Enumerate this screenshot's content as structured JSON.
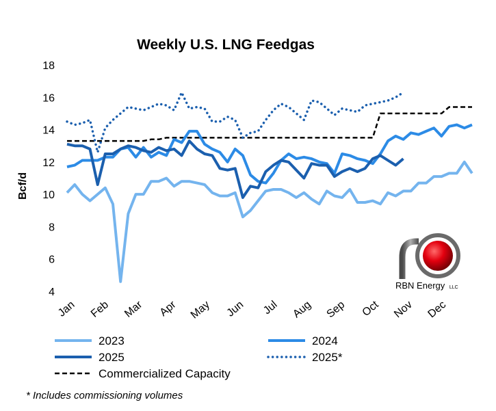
{
  "chart_data": {
    "type": "line",
    "title": "Weekly U.S. LNG Feedgas",
    "ylabel": "Bcf/d",
    "xlabel": "",
    "ylim": [
      4,
      18
    ],
    "yticks": [
      4,
      6,
      8,
      10,
      12,
      14,
      16,
      18
    ],
    "months": [
      "Jan",
      "Feb",
      "Mar",
      "Apr",
      "May",
      "Jun",
      "Jul",
      "Aug",
      "Sep",
      "Oct",
      "Nov",
      "Dec"
    ],
    "x_unit": "week",
    "grid": false,
    "legend": "bottom",
    "series": [
      {
        "name": "2023",
        "color": "#74b4ee",
        "style": "solid",
        "values": [
          10.1,
          10.6,
          10.0,
          9.6,
          10.0,
          10.4,
          9.4,
          4.6,
          8.8,
          10.0,
          10.0,
          10.8,
          10.8,
          11.0,
          10.5,
          10.8,
          10.8,
          10.7,
          10.6,
          10.1,
          9.9,
          9.9,
          10.1,
          8.6,
          9.0,
          9.6,
          10.2,
          10.3,
          10.3,
          10.1,
          9.8,
          10.1,
          9.7,
          9.4,
          10.2,
          9.9,
          9.8,
          10.3,
          9.5,
          9.5,
          9.6,
          9.4,
          10.1,
          9.9,
          10.2,
          10.2,
          10.7,
          10.7,
          11.1,
          11.1,
          11.3,
          11.3,
          12.0,
          11.3
        ]
      },
      {
        "name": "2024",
        "color": "#2c8be6",
        "style": "solid",
        "values": [
          11.7,
          11.8,
          12.1,
          12.1,
          12.1,
          12.3,
          12.3,
          12.8,
          12.9,
          12.3,
          12.9,
          12.3,
          12.6,
          12.4,
          13.4,
          13.2,
          13.9,
          13.9,
          13.1,
          12.8,
          12.6,
          12.0,
          12.8,
          12.4,
          11.2,
          10.8,
          10.7,
          11.3,
          12.1,
          12.5,
          12.2,
          12.3,
          12.2,
          12.0,
          11.9,
          11.3,
          12.5,
          12.4,
          12.2,
          12.1,
          11.9,
          12.5,
          13.3,
          13.6,
          13.4,
          13.8,
          13.7,
          13.9,
          14.1,
          13.6,
          14.2,
          14.3,
          14.1,
          14.3
        ]
      },
      {
        "name": "2025",
        "color": "#1b5fae",
        "style": "solid",
        "values": [
          13.1,
          13.0,
          13.0,
          12.8,
          10.6,
          12.5,
          12.5,
          12.8,
          13.0,
          12.9,
          12.7,
          12.6,
          12.9,
          12.7,
          12.8,
          12.4,
          13.3,
          12.8,
          12.5,
          12.4,
          11.6,
          11.5,
          11.6,
          9.8,
          10.5,
          10.4,
          11.4,
          11.8,
          12.1,
          12.0,
          11.5,
          11.0,
          11.9,
          11.8,
          11.8,
          11.1,
          11.4,
          11.6,
          11.4,
          11.6,
          12.2,
          12.4,
          12.1,
          11.8,
          12.2
        ]
      },
      {
        "name": "2025*",
        "color": "#1b5fae",
        "style": "dotted",
        "values": [
          14.5,
          14.3,
          14.4,
          14.6,
          12.6,
          14.1,
          14.6,
          15.0,
          15.4,
          15.3,
          15.2,
          15.4,
          15.6,
          15.5,
          15.2,
          16.3,
          15.3,
          15.4,
          15.3,
          14.5,
          14.5,
          14.8,
          14.6,
          13.5,
          13.8,
          13.9,
          14.6,
          15.2,
          15.6,
          15.4,
          15.0,
          14.6,
          15.8,
          15.7,
          15.3,
          14.9,
          15.3,
          15.2,
          15.1,
          15.5,
          15.6,
          15.7,
          15.8,
          16.0,
          16.3
        ]
      },
      {
        "name": "Commercialized Capacity",
        "color": "#000000",
        "style": "dashed",
        "values": [
          13.3,
          13.3,
          13.3,
          13.3,
          13.3,
          13.3,
          13.3,
          13.3,
          13.3,
          13.3,
          13.3,
          13.4,
          13.4,
          13.5,
          13.5,
          13.5,
          13.5,
          13.5,
          13.5,
          13.5,
          13.5,
          13.5,
          13.5,
          13.5,
          13.5,
          13.5,
          13.5,
          13.5,
          13.5,
          13.5,
          13.5,
          13.5,
          13.5,
          13.5,
          13.5,
          13.5,
          13.5,
          13.5,
          13.5,
          13.5,
          13.5,
          15.0,
          15.0,
          15.0,
          15.0,
          15.0,
          15.0,
          15.0,
          15.0,
          15.0,
          15.4,
          15.4,
          15.4,
          15.4
        ]
      }
    ],
    "legend_entries": [
      "2023",
      "2024",
      "2025",
      "2025*",
      "Commercialized Capacity"
    ]
  },
  "footnote": "* Includes commissioning volumes",
  "logo": {
    "text": "RBN Energy",
    "suffix": "LLC",
    "accent_color": "#e3000f",
    "pipe_color": "#666666"
  }
}
